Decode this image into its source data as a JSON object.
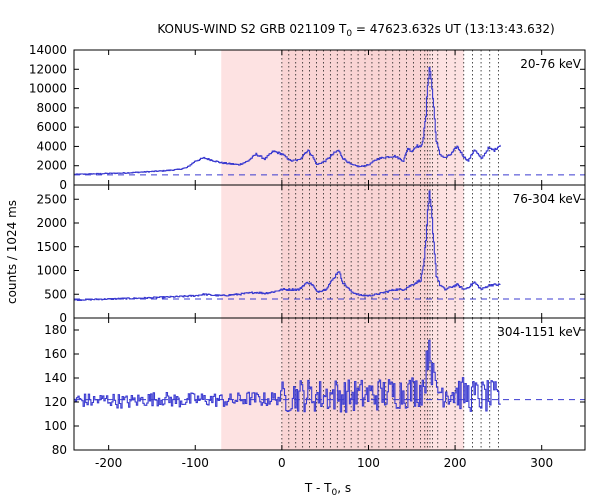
{
  "chart_data": [
    {
      "type": "line",
      "title": "KONUS-WIND S2 GRB 021109 T0 = 47623.632s UT (13:13:43.632)",
      "title_parts": [
        "KONUS-WIND S2 GRB 021109 T",
        "0",
        " = 47623.632s UT (13:13:43.632)"
      ],
      "panel_label": "20-76 keV",
      "xlim": [
        -240,
        350
      ],
      "ylim": [
        0,
        14000
      ],
      "yticks": [
        0,
        2000,
        4000,
        6000,
        8000,
        10000,
        12000,
        14000
      ],
      "ytick_labels": [
        "0",
        "2000",
        "4000",
        "6000",
        "8000",
        "10000",
        "12000",
        "14000"
      ],
      "background_level": 1050,
      "series": [
        {
          "x": [
            -240,
            -220,
            -200,
            -180,
            -160,
            -140,
            -120,
            -110,
            -100,
            -90,
            -80,
            -70,
            -60,
            -50,
            -40,
            -30,
            -20,
            -10,
            0,
            10,
            20,
            25,
            30,
            35,
            40,
            50,
            60,
            65,
            70,
            80,
            90,
            100,
            110,
            120,
            130,
            140,
            145,
            150,
            155,
            160,
            163,
            166,
            168,
            170,
            172,
            175,
            178,
            182,
            188,
            195,
            202,
            210,
            215,
            222,
            230,
            238,
            245,
            252
          ],
          "y": [
            1100,
            1150,
            1200,
            1250,
            1350,
            1450,
            1600,
            1800,
            2500,
            2800,
            2550,
            2300,
            2200,
            2100,
            2450,
            3200,
            2700,
            3500,
            3200,
            2500,
            2600,
            3200,
            3600,
            3000,
            2100,
            2500,
            3300,
            3600,
            2800,
            2100,
            1900,
            2100,
            2700,
            2900,
            3000,
            2500,
            3800,
            3500,
            4100,
            3900,
            5000,
            7200,
            10500,
            12300,
            11000,
            8000,
            4500,
            3200,
            2800,
            3200,
            4000,
            2900,
            2500,
            3700,
            2700,
            3800,
            3600,
            4200
          ]
        }
      ]
    },
    {
      "type": "line",
      "panel_label": "76-304 keV",
      "ylabel": "counts / 1024 ms",
      "xlim": [
        -240,
        350
      ],
      "ylim": [
        0,
        2800
      ],
      "yticks": [
        0,
        500,
        1000,
        1500,
        2000,
        2500
      ],
      "ytick_labels": [
        "0",
        "500",
        "1000",
        "1500",
        "2000",
        "2500"
      ],
      "background_level": 400,
      "series": [
        {
          "x": [
            -240,
            -200,
            -160,
            -120,
            -100,
            -90,
            -80,
            -70,
            -50,
            -30,
            -20,
            -10,
            0,
            10,
            20,
            25,
            30,
            35,
            40,
            50,
            60,
            65,
            70,
            80,
            90,
            100,
            110,
            120,
            130,
            140,
            150,
            160,
            163,
            166,
            168,
            170,
            172,
            175,
            178,
            182,
            188,
            195,
            202,
            210,
            215,
            222,
            230,
            240,
            252
          ],
          "y": [
            380,
            400,
            420,
            450,
            470,
            500,
            480,
            470,
            500,
            540,
            520,
            550,
            600,
            600,
            600,
            700,
            750,
            700,
            550,
            600,
            850,
            1000,
            750,
            550,
            480,
            470,
            500,
            550,
            600,
            600,
            700,
            800,
            1100,
            1600,
            2200,
            2600,
            2300,
            1600,
            900,
            700,
            600,
            650,
            700,
            600,
            650,
            750,
            600,
            700,
            700
          ]
        }
      ]
    },
    {
      "type": "line",
      "panel_label": "304-1151 keV",
      "xlabel": "T - T0, s",
      "xlabel_parts": [
        "T - T",
        "0",
        ", s"
      ],
      "xlim": [
        -240,
        350
      ],
      "ylim": [
        80,
        190
      ],
      "yticks": [
        80,
        100,
        120,
        140,
        160,
        180
      ],
      "ytick_labels": [
        "80",
        "100",
        "120",
        "140",
        "160",
        "180"
      ],
      "xticks": [
        -200,
        -100,
        0,
        100,
        200,
        300
      ],
      "xtick_labels": [
        "-200",
        "-100",
        "0",
        "100",
        "200",
        "300"
      ],
      "background_level": 122,
      "noise_amplitude_before_T0": 6,
      "noise_amplitude_after_T0": 14,
      "series": [
        {
          "x": [
            -240,
            -220,
            -200,
            -180,
            -160,
            -140,
            -120,
            -100,
            -80,
            -60,
            -40,
            -20,
            0,
            20,
            40,
            60,
            80,
            100,
            120,
            140,
            160,
            165,
            168,
            170,
            172,
            175,
            180,
            200,
            220,
            240,
            252
          ],
          "y": [
            122,
            121,
            122,
            120,
            122,
            123,
            121,
            122,
            122,
            121,
            123,
            122,
            124,
            126,
            125,
            126,
            125,
            126,
            127,
            128,
            130,
            140,
            160,
            176,
            150,
            135,
            130,
            128,
            125,
            124,
            123
          ]
        }
      ]
    }
  ],
  "shared": {
    "shaded_region": [
      -70,
      210
    ],
    "dense_shaded_region": [
      0,
      170
    ],
    "dotted_lines": [
      0,
      8,
      16,
      24,
      32,
      40,
      48,
      56,
      64,
      72,
      80,
      88,
      96,
      104,
      112,
      120,
      128,
      136,
      144,
      152,
      160,
      165,
      168,
      171,
      174,
      180,
      190,
      200,
      210,
      220,
      230,
      240,
      250
    ],
    "line_color": "#3b3bd0",
    "dash_color": "#3b3bd0",
    "shade_color": "#fde2e2",
    "shade_dense_color": "#f6c9c9"
  }
}
